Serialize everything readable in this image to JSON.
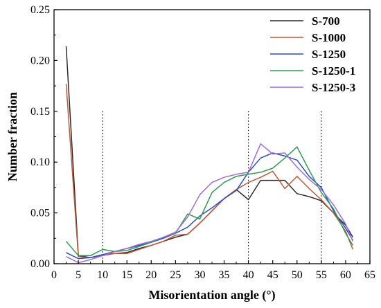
{
  "chart_data": {
    "type": "line",
    "xlabel": "Misorientation angle (°)",
    "ylabel": "Number fraction",
    "xlim": [
      0,
      65
    ],
    "ylim": [
      0,
      0.25
    ],
    "xticks": [
      "0",
      "5",
      "10",
      "15",
      "20",
      "25",
      "30",
      "35",
      "40",
      "45",
      "50",
      "55",
      "60",
      "65"
    ],
    "yticks": [
      "0.00",
      "0.05",
      "0.10",
      "0.15",
      "0.20",
      "0.25"
    ],
    "reference_lines_x": [
      10,
      40,
      55
    ],
    "grid": false,
    "legend_position": "top-right",
    "x": [
      2.5,
      5,
      7.5,
      10,
      12.5,
      15,
      17.5,
      20,
      22.5,
      25,
      27.5,
      30,
      32.5,
      35,
      37.5,
      40,
      42.5,
      45,
      47.5,
      50,
      52.5,
      55,
      57.5,
      60,
      61.5
    ],
    "series": [
      {
        "name": "S-700",
        "color": "#2b2b2b",
        "values": [
          0.214,
          0.008,
          0.006,
          0.009,
          0.01,
          0.011,
          0.015,
          0.018,
          0.022,
          0.026,
          0.029,
          0.04,
          0.052,
          0.064,
          0.073,
          0.063,
          0.082,
          0.082,
          0.082,
          0.069,
          0.066,
          0.062,
          0.05,
          0.038,
          0.026
        ]
      },
      {
        "name": "S-1000",
        "color": "#c0563a",
        "values": [
          0.177,
          0.007,
          0.006,
          0.008,
          0.01,
          0.01,
          0.014,
          0.018,
          0.022,
          0.028,
          0.029,
          0.04,
          0.052,
          0.064,
          0.073,
          0.08,
          0.085,
          0.091,
          0.074,
          0.086,
          0.074,
          0.063,
          0.05,
          0.032,
          0.014
        ]
      },
      {
        "name": "S-1250",
        "color": "#2a4fc0",
        "values": [
          0.011,
          0.005,
          0.006,
          0.009,
          0.012,
          0.015,
          0.018,
          0.021,
          0.025,
          0.03,
          0.036,
          0.047,
          0.055,
          0.064,
          0.072,
          0.09,
          0.104,
          0.109,
          0.106,
          0.102,
          0.086,
          0.075,
          0.052,
          0.035,
          0.023
        ]
      },
      {
        "name": "S-1250-1",
        "color": "#2e9b52",
        "values": [
          0.022,
          0.008,
          0.008,
          0.014,
          0.012,
          0.013,
          0.017,
          0.021,
          0.026,
          0.03,
          0.049,
          0.044,
          0.07,
          0.08,
          0.086,
          0.088,
          0.09,
          0.094,
          0.104,
          0.115,
          0.092,
          0.07,
          0.054,
          0.03,
          0.018
        ]
      },
      {
        "name": "S-1250-3",
        "color": "#a06ad8",
        "values": [
          0.007,
          0.001,
          0.004,
          0.008,
          0.012,
          0.015,
          0.019,
          0.022,
          0.026,
          0.031,
          0.046,
          0.068,
          0.08,
          0.085,
          0.088,
          0.09,
          0.118,
          0.108,
          0.109,
          0.095,
          0.083,
          0.073,
          0.058,
          0.039,
          0.022
        ]
      }
    ]
  }
}
